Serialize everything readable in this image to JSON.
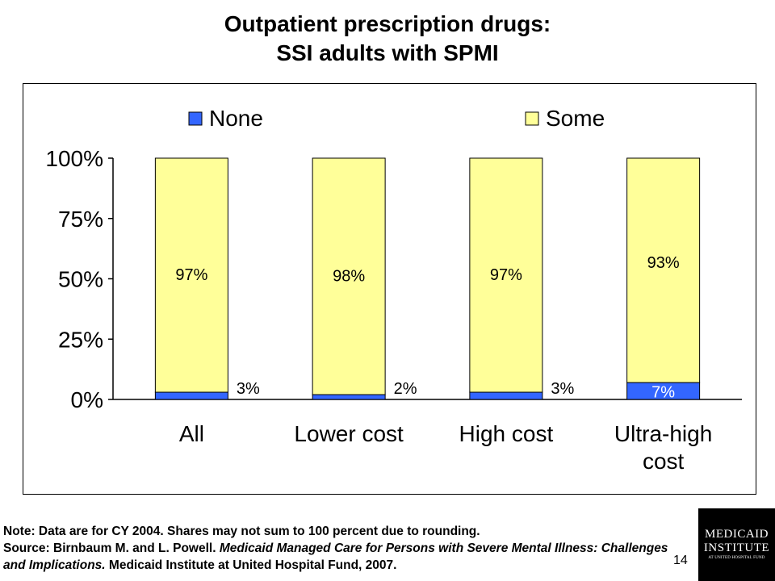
{
  "title_line1": "Outpatient prescription drugs:",
  "title_line2": "SSI adults with SPMI",
  "chart_data": {
    "type": "bar",
    "stacked": true,
    "categories": [
      [
        "All"
      ],
      [
        "Lower cost"
      ],
      [
        "High cost"
      ],
      [
        "Ultra-high",
        "cost"
      ]
    ],
    "series": [
      {
        "name": "None",
        "values": [
          3,
          2,
          3,
          7
        ],
        "labels": [
          "3%",
          "2%",
          "3%",
          "7%"
        ],
        "color": "#3366FF"
      },
      {
        "name": "Some",
        "values": [
          97,
          98,
          97,
          93
        ],
        "labels": [
          "97%",
          "98%",
          "97%",
          "93%"
        ],
        "color": "#FFFF99"
      }
    ],
    "yticks": [
      "0%",
      "25%",
      "50%",
      "75%",
      "100%"
    ],
    "ylim": [
      0,
      100
    ],
    "legend_position": "top",
    "grid": false
  },
  "note": {
    "line1": "Note:  Data are for CY 2004.  Shares may not sum to 100 percent due to rounding.",
    "source_prefix": "Source:  Birnbaum M. and L. Powell.  ",
    "source_italic": "Medicaid Managed Care for Persons with Severe Mental Illness: Challenges and Implications.",
    "source_suffix": "  Medicaid Institute at United Hospital Fund, 2007."
  },
  "page_number": "14",
  "logo": {
    "line1": "MEDICAID",
    "line2": "INSTITUTE",
    "line3": "AT UNITED HOSPITAL FUND"
  }
}
